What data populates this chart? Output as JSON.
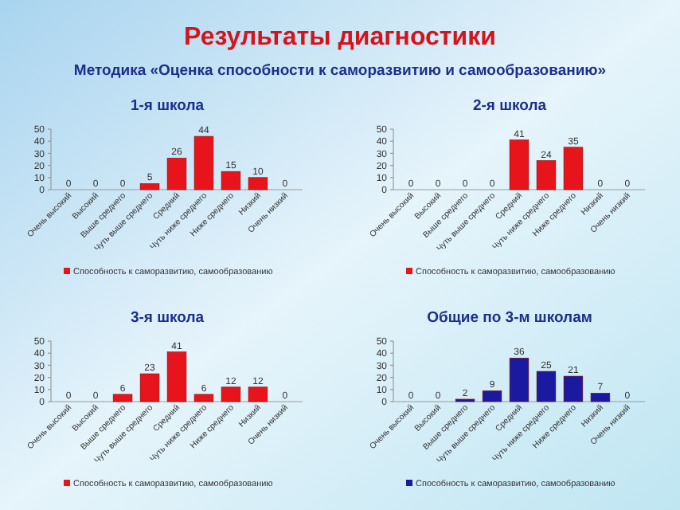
{
  "chart_data": [
    {
      "type": "other",
      "title": "Результаты диагностики",
      "subtitle": "Методика «Оценка способности к саморазвитию и самообразованию»"
    },
    {
      "type": "bar",
      "title": "1-я школа",
      "categories": [
        "Очень высокий",
        "Высокий",
        "Выше среднего",
        "Чуть выше среднего",
        "Средний",
        "Чуть ниже среднего",
        "Ниже среднего",
        "Низкий",
        "Очень низкий"
      ],
      "series": [
        {
          "name": "Способность к саморазвитию, самообразованию",
          "color": "#e8141b",
          "values": [
            0,
            0,
            0,
            5,
            26,
            44,
            15,
            10,
            0
          ]
        }
      ],
      "ylim": [
        0,
        50
      ],
      "yticks": [
        0,
        10,
        20,
        30,
        40,
        50
      ],
      "data_labels": true,
      "legend": "bottom",
      "grid": false
    },
    {
      "type": "bar",
      "title": "2-я школа",
      "categories": [
        "Очень высокий",
        "Высокий",
        "Выше среднего",
        "Чуть выше среднего",
        "Средний",
        "Чуть ниже среднего",
        "Ниже среднего",
        "Низкий",
        "Очень низкий"
      ],
      "series": [
        {
          "name": "Способность к саморазвитию, самообразованию",
          "color": "#e8141b",
          "values": [
            0,
            0,
            0,
            0,
            41,
            24,
            35,
            0,
            0
          ]
        }
      ],
      "ylim": [
        0,
        50
      ],
      "yticks": [
        0,
        10,
        20,
        30,
        40,
        50
      ],
      "data_labels": true,
      "legend": "bottom",
      "grid": false
    },
    {
      "type": "bar",
      "title": "3-я школа",
      "categories": [
        "Очень высокий",
        "Высокий",
        "Выше среднего",
        "Чуть выше среднего",
        "Средний",
        "Чуть ниже среднего",
        "Ниже среднего",
        "Низкий",
        "Очень низкий"
      ],
      "series": [
        {
          "name": "Способность к саморазвитию, самообразованию",
          "color": "#e8141b",
          "values": [
            0,
            0,
            6,
            23,
            41,
            6,
            12,
            12,
            0
          ]
        }
      ],
      "ylim": [
        0,
        50
      ],
      "yticks": [
        0,
        10,
        20,
        30,
        40,
        50
      ],
      "data_labels": true,
      "legend": "bottom",
      "grid": false
    },
    {
      "type": "bar",
      "title": "Общие по 3-м школам",
      "categories": [
        "Очень высокий",
        "Высокий",
        "Выше среднего",
        "Чуть выше среднего",
        "Средний",
        "Чуть ниже среднего",
        "Ниже среднего",
        "Низкий",
        "Очень низкий"
      ],
      "series": [
        {
          "name": "Способность к саморазвитию, самообразованию",
          "color": "#1a1aa0",
          "values": [
            0,
            0,
            2,
            9,
            36,
            25,
            21,
            7,
            0
          ]
        }
      ],
      "ylim": [
        0,
        50
      ],
      "yticks": [
        0,
        10,
        20,
        30,
        40,
        50
      ],
      "data_labels": true,
      "legend": "bottom",
      "grid": false
    }
  ]
}
